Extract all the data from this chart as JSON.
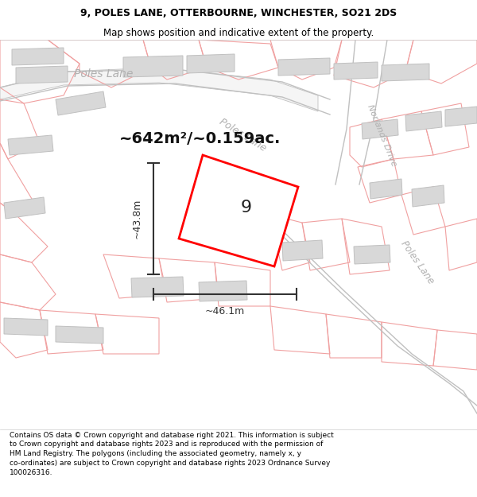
{
  "title_line1": "9, POLES LANE, OTTERBOURNE, WINCHESTER, SO21 2DS",
  "title_line2": "Map shows position and indicative extent of the property.",
  "footer_text": "Contains OS data © Crown copyright and database right 2021. This information is subject to Crown copyright and database rights 2023 and is reproduced with the permission of HM Land Registry. The polygons (including the associated geometry, namely x, y co-ordinates) are subject to Crown copyright and database rights 2023 Ordnance Survey 100026316.",
  "area_label": "~642m²/~0.159ac.",
  "width_label": "~46.1m",
  "height_label": "~43.8m",
  "plot_number": "9",
  "map_bg": "#ffffff",
  "cadastral_line_color": "#f0a0a0",
  "road_outline_color": "#c0c0c0",
  "building_fill": "#d8d8d8",
  "building_edge": "#c0c0c0",
  "boundary_color": "#ff0000",
  "dim_line_color": "#333333",
  "road_label_color": "#b0b0b0",
  "header_footer_bg": "#ffffff",
  "title_fontsize": 9.0,
  "subtitle_fontsize": 8.5,
  "footer_fontsize": 6.5,
  "area_fontsize": 14,
  "dim_fontsize": 9,
  "plot_num_fontsize": 16
}
